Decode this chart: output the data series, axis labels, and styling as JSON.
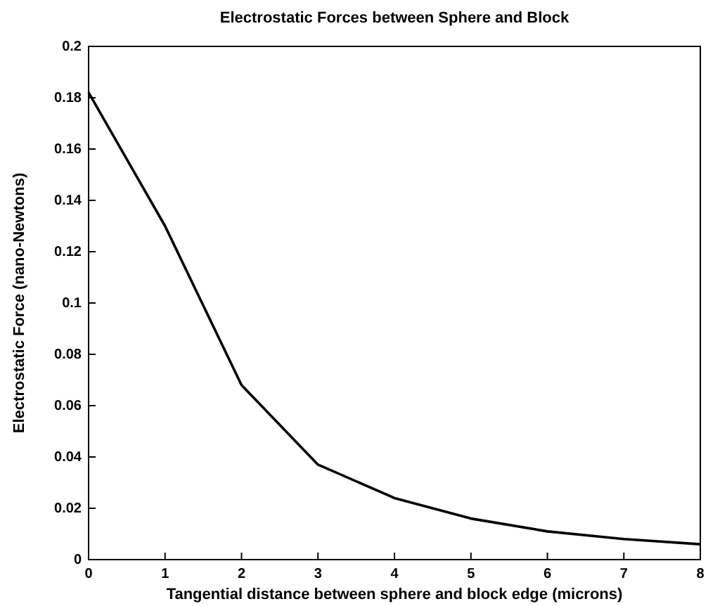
{
  "chart_data": {
    "type": "line",
    "title": "Electrostatic Forces between Sphere and Block",
    "xlabel": "Tangential distance between sphere and block edge (microns)",
    "ylabel": "Electrostatic Force (nano-Newtons)",
    "x": [
      0,
      1,
      2,
      3,
      4,
      5,
      6,
      7,
      8
    ],
    "series": [
      {
        "color": "#000000",
        "values": [
          0.182,
          0.13,
          0.068,
          0.037,
          0.024,
          0.016,
          0.011,
          0.008,
          0.006
        ]
      }
    ],
    "xlim": [
      0,
      8
    ],
    "xticks": [
      0,
      1,
      2,
      3,
      4,
      5,
      6,
      7,
      8
    ],
    "ylim": [
      0,
      0.2
    ],
    "yticks": [
      0,
      0.02,
      0.04,
      0.06,
      0.08,
      0.1,
      0.12,
      0.14,
      0.16,
      0.18,
      0.2
    ],
    "grid": false,
    "marker": "none",
    "line_style": "solid"
  }
}
